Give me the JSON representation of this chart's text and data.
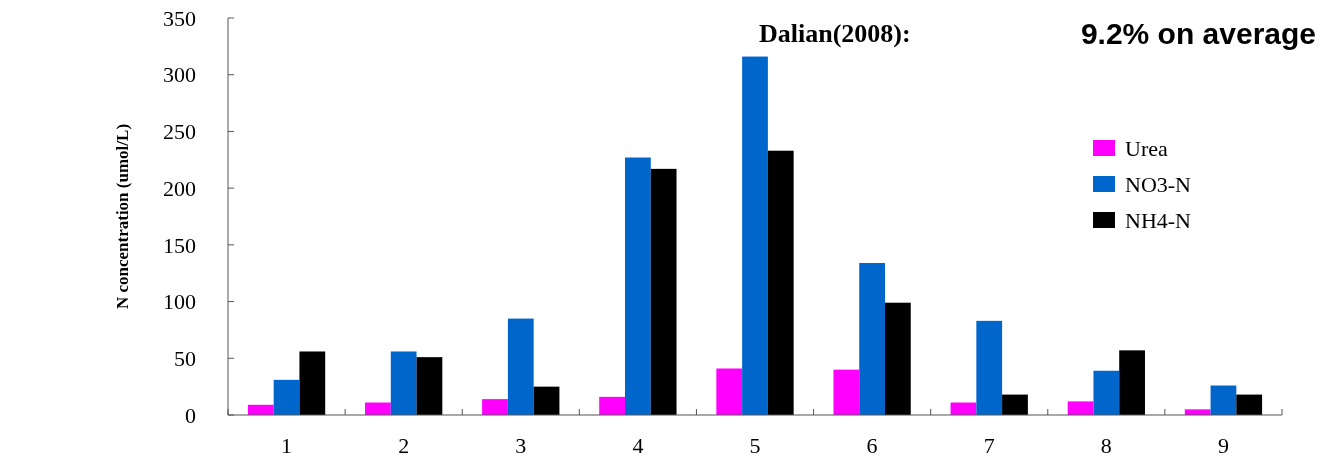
{
  "chart_data": {
    "type": "bar",
    "title": "Dalian(2008):",
    "annotations": [
      "9.2% on average"
    ],
    "ylabel": "N concentration (umol/L)",
    "categories": [
      "1",
      "2",
      "3",
      "4",
      "5",
      "6",
      "7",
      "8",
      "9"
    ],
    "series": [
      {
        "name": "Urea",
        "color": "#ff00ff",
        "values": [
          9,
          11,
          14,
          16,
          41,
          40,
          11,
          12,
          5
        ]
      },
      {
        "name": "NO3-N",
        "color": "#0066cc",
        "values": [
          31,
          56,
          85,
          227,
          316,
          134,
          83,
          39,
          26
        ]
      },
      {
        "name": "NH4-N",
        "color": "#000000",
        "values": [
          56,
          51,
          25,
          217,
          233,
          99,
          18,
          57,
          18
        ]
      }
    ],
    "ylim": [
      0,
      350
    ],
    "yticks": [
      0,
      50,
      100,
      150,
      200,
      250,
      300,
      350
    ],
    "legend": "top right",
    "grid": false
  }
}
